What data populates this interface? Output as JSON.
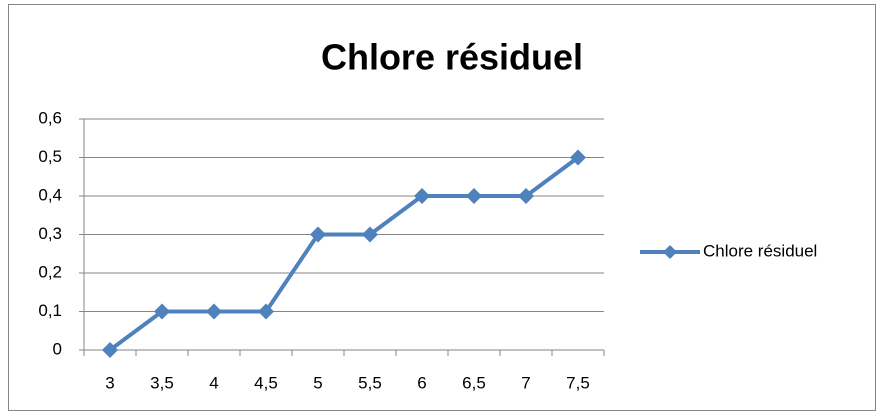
{
  "chart_data": {
    "type": "line",
    "title": "Chlore résiduel",
    "categories": [
      "3",
      "3,5",
      "4",
      "4,5",
      "5",
      "5,5",
      "6",
      "6,5",
      "7",
      "7,5"
    ],
    "series": [
      {
        "name": "Chlore résiduel",
        "color": "#4f81bd",
        "values": [
          0,
          0.1,
          0.1,
          0.1,
          0.3,
          0.3,
          0.4,
          0.4,
          0.4,
          0.5
        ]
      }
    ],
    "ylim": [
      0,
      0.6
    ],
    "yticks": [
      0,
      {
        "value": 0.1,
        "label": "0,1"
      },
      {
        "value": 0.2,
        "label": "0,2"
      },
      {
        "value": 0.3,
        "label": "0,3"
      },
      {
        "value": 0.4,
        "label": "0,4"
      },
      {
        "value": 0.5,
        "label": "0,5"
      },
      {
        "value": 0.6,
        "label": "0,6"
      }
    ],
    "grid": true,
    "legend": "right"
  }
}
